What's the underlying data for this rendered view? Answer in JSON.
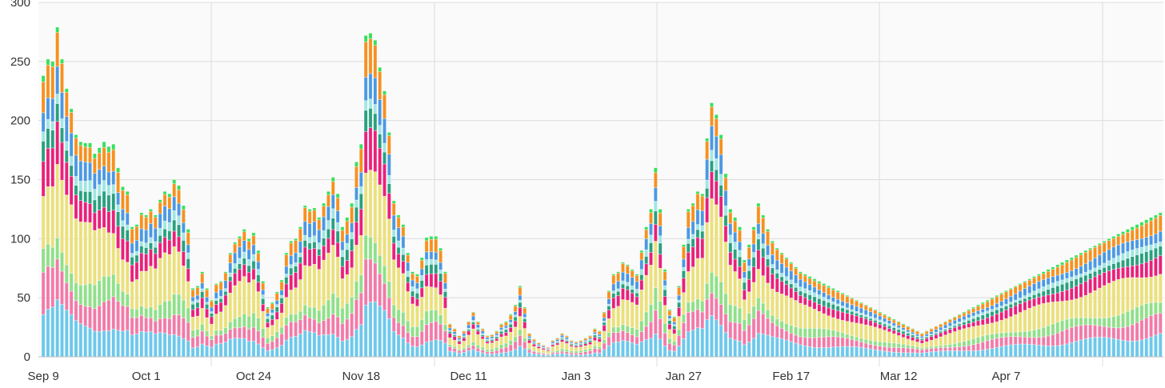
{
  "chart_data": {
    "type": "bar",
    "stacked": true,
    "title": "",
    "xlabel": "",
    "ylabel": "",
    "ylim": [
      0,
      300
    ],
    "y_ticks": [
      0,
      50,
      100,
      150,
      200,
      250,
      300
    ],
    "grid": true,
    "legend": "none",
    "x_tick_labels": [
      "Sep 9",
      "Oct 1",
      "Oct 24",
      "Nov 18",
      "Dec 11",
      "Jan 3",
      "Jan 27",
      "Feb 17",
      "Mar 12",
      "Apr 7"
    ],
    "x_tick_index": [
      0,
      22,
      45,
      68,
      91,
      114,
      137,
      160,
      183,
      206
    ],
    "series_colors": [
      "#6cc8ec",
      "#f27aa8",
      "#8fe088",
      "#ebe07a",
      "#e9207a",
      "#28a07e",
      "#9fe6e3",
      "#4a98e3",
      "#f6901e",
      "#36e05a"
    ],
    "series_shares": [
      0.15,
      0.12,
      0.09,
      0.24,
      0.11,
      0.06,
      0.04,
      0.08,
      0.09,
      0.02
    ],
    "totals": [
      238,
      252,
      250,
      279,
      252,
      227,
      210,
      188,
      182,
      181,
      181,
      172,
      177,
      182,
      178,
      180,
      160,
      144,
      140,
      110,
      112,
      122,
      120,
      125,
      120,
      133,
      140,
      138,
      150,
      145,
      128,
      108,
      58,
      60,
      72,
      58,
      48,
      62,
      64,
      72,
      88,
      97,
      102,
      108,
      100,
      105,
      90,
      64,
      42,
      46,
      55,
      65,
      88,
      98,
      100,
      110,
      128,
      125,
      126,
      118,
      130,
      140,
      152,
      138,
      110,
      118,
      130,
      165,
      180,
      272,
      274,
      268,
      245,
      225,
      190,
      132,
      120,
      112,
      88,
      72,
      70,
      84,
      101,
      102,
      102,
      92,
      72,
      28,
      24,
      18,
      22,
      30,
      38,
      30,
      24,
      18,
      19,
      22,
      28,
      30,
      36,
      44,
      60,
      42,
      20,
      15,
      12,
      10,
      8,
      14,
      16,
      20,
      18,
      14,
      13,
      14,
      16,
      18,
      24,
      22,
      38,
      56,
      70,
      72,
      80,
      78,
      74,
      70,
      90,
      110,
      125,
      160,
      125,
      74,
      40,
      34,
      60,
      95,
      125,
      130,
      140,
      138,
      185,
      215,
      205,
      188,
      155,
      125,
      118,
      110,
      82,
      95,
      110,
      130,
      120,
      108,
      98,
      92,
      88,
      84,
      80,
      76,
      72,
      70,
      68,
      66,
      64,
      62,
      60,
      58,
      56,
      54,
      52,
      50,
      48,
      46,
      44,
      42,
      40,
      38,
      36,
      34,
      32,
      30,
      28,
      26,
      24,
      22,
      20,
      22,
      24,
      26,
      28,
      30,
      32,
      34,
      36,
      38,
      40,
      42,
      44,
      46,
      48,
      50,
      52,
      54,
      56,
      58,
      60,
      62,
      64,
      66,
      68,
      70,
      72,
      74,
      76,
      78,
      80,
      82,
      84,
      86,
      88,
      90,
      92,
      94,
      96,
      98,
      100,
      102,
      104,
      106,
      108,
      110,
      112,
      114,
      116,
      118,
      120,
      122
    ]
  }
}
